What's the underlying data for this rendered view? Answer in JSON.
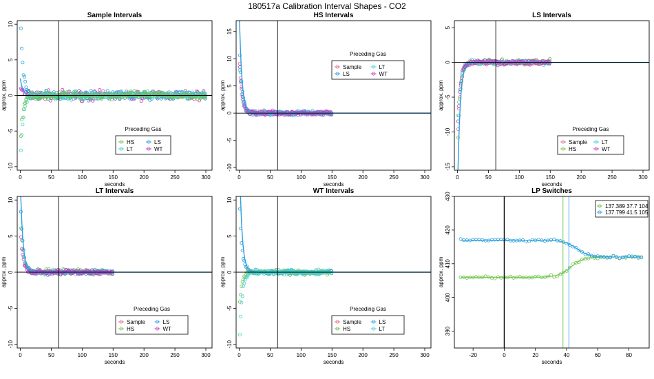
{
  "figure_title": "180517a   Calibration Interval Shapes - CO2",
  "colors": {
    "Sample": "#e16a86",
    "HS": "#6fc44c",
    "LS": "#2b9fe0",
    "LT": "#3fd1d4",
    "WT": "#c23ac4",
    "curve": "#2b9fe0",
    "early": "#e8c21f"
  },
  "chart_data": [
    {
      "id": "sample",
      "type": "scatter",
      "title": "Sample Intervals",
      "xlabel": "seconds",
      "ylabel": "approx. ppm",
      "xlim": [
        -5,
        310
      ],
      "ylim": [
        -10.5,
        10.5
      ],
      "xticks": [
        0,
        50,
        100,
        150,
        200,
        250,
        300
      ],
      "yticks": [
        -10,
        -5,
        0,
        5,
        10
      ],
      "vline": 62,
      "hline": 0,
      "legend": {
        "title": "Preceding Gas",
        "entries": [
          "HS",
          "LS",
          "LT",
          "WT"
        ]
      },
      "series": [
        {
          "name": "WT",
          "xmax": 300,
          "noise": 1.0,
          "start": 1.5
        },
        {
          "name": "LS",
          "xmax": 300,
          "noise": 0.9,
          "start": 12
        },
        {
          "name": "LT",
          "xmax": 300,
          "noise": 0.8,
          "start": -10
        },
        {
          "name": "HS",
          "xmax": 300,
          "noise": 0.8,
          "start": -7
        }
      ]
    },
    {
      "id": "hs",
      "type": "scatter",
      "title": "HS Intervals",
      "xlabel": "seconds",
      "ylabel": "approx. ppm",
      "xlim": [
        -5,
        310
      ],
      "ylim": [
        -10.5,
        17
      ],
      "xticks": [
        0,
        50,
        100,
        150,
        200,
        250,
        300
      ],
      "yticks": [
        -10,
        -5,
        0,
        5,
        10,
        15
      ],
      "vline": 62,
      "hline": 0,
      "legend": {
        "title": "Preceding Gas",
        "entries": [
          "Sample",
          "LT",
          "LS",
          "WT"
        ]
      },
      "series": [
        {
          "name": "Sample",
          "xmax": 150,
          "noise": 0.6,
          "start": 12
        },
        {
          "name": "LS",
          "xmax": 150,
          "noise": 0.6,
          "start": 14
        },
        {
          "name": "LT",
          "xmax": 150,
          "noise": 0.6,
          "start": 10
        },
        {
          "name": "WT",
          "xmax": 150,
          "noise": 0.6,
          "start": 11
        }
      ]
    },
    {
      "id": "ls",
      "type": "scatter",
      "title": "LS Intervals",
      "xlabel": "seconds",
      "ylabel": "approx. ppm",
      "xlim": [
        -5,
        310
      ],
      "ylim": [
        -15.5,
        6
      ],
      "xticks": [
        0,
        50,
        100,
        150,
        200,
        250,
        300
      ],
      "yticks": [
        -15,
        -10,
        -5,
        0,
        5
      ],
      "vline": 62,
      "hline": 0,
      "legend": {
        "title": "Preceding Gas",
        "entries": [
          "Sample",
          "LT",
          "HS",
          "WT"
        ]
      },
      "series": [
        {
          "name": "Sample",
          "xmax": 150,
          "noise": 0.5,
          "start": -12
        },
        {
          "name": "HS",
          "xmax": 150,
          "noise": 0.6,
          "start": -14
        },
        {
          "name": "LT",
          "xmax": 150,
          "noise": 0.5,
          "start": -10
        },
        {
          "name": "WT",
          "xmax": 150,
          "noise": 0.5,
          "start": -11
        }
      ]
    },
    {
      "id": "lt",
      "type": "scatter",
      "title": "LT Intervals",
      "xlabel": "seconds",
      "ylabel": "approx. ppm",
      "xlim": [
        -5,
        310
      ],
      "ylim": [
        -10.5,
        10.5
      ],
      "xticks": [
        0,
        50,
        100,
        150,
        200,
        250,
        300
      ],
      "yticks": [
        -10,
        -5,
        0,
        5,
        10
      ],
      "vline": 62,
      "hline": 0,
      "legend": {
        "title": "Preceding Gas",
        "entries": [
          "Sample",
          "LS",
          "HS",
          "WT"
        ]
      },
      "series": [
        {
          "name": "HS",
          "xmax": 150,
          "noise": 0.6,
          "start": 8
        },
        {
          "name": "LS",
          "xmax": 150,
          "noise": 0.5,
          "start": 11
        },
        {
          "name": "WT",
          "xmax": 150,
          "noise": 0.5,
          "start": 6
        }
      ]
    },
    {
      "id": "wt",
      "type": "scatter",
      "title": "WT Intervals",
      "xlabel": "seconds",
      "ylabel": "approx. ppm",
      "xlim": [
        -5,
        310
      ],
      "ylim": [
        -10.5,
        10.5
      ],
      "xticks": [
        0,
        50,
        100,
        150,
        200,
        250,
        300
      ],
      "yticks": [
        -10,
        -5,
        0,
        5,
        10
      ],
      "vline": 62,
      "hline": 0,
      "legend": {
        "title": "Preceding Gas",
        "entries": [
          "Sample",
          "LS",
          "HS",
          "LT"
        ]
      },
      "series": [
        {
          "name": "LS",
          "xmax": 150,
          "noise": 0.5,
          "start": 11
        },
        {
          "name": "HS",
          "xmax": 150,
          "noise": 0.5,
          "start": -5
        },
        {
          "name": "LT",
          "xmax": 150,
          "noise": 0.5,
          "start": -11
        }
      ]
    },
    {
      "id": "lp",
      "type": "scatter",
      "title": "LP Switches",
      "xlabel": "seconds",
      "ylabel": "approx. ppm",
      "xlim": [
        -32,
        93
      ],
      "ylim": [
        385,
        430
      ],
      "xticks": [
        -20,
        0,
        20,
        40,
        60,
        80
      ],
      "yticks": [
        390,
        400,
        410,
        420,
        430
      ],
      "vlines": [
        {
          "x": 0,
          "color": "#000000"
        },
        {
          "x": 37.7,
          "color": "#6fc44c"
        },
        {
          "x": 41.5,
          "color": "#2b9fe0"
        }
      ],
      "legend": {
        "entries": [
          {
            "label": "137.389 37.7 104",
            "color": "#6fc44c"
          },
          {
            "label": "137.799 41.5 105",
            "color": "#2b9fe0"
          }
        ]
      },
      "series": [
        {
          "name": "HS",
          "color": "#6fc44c",
          "level_before": 406,
          "level_after": 412,
          "switch_x": 37.7
        },
        {
          "name": "LS",
          "color": "#2b9fe0",
          "level_before": 417,
          "level_after": 412,
          "switch_x": 41.5
        }
      ]
    }
  ]
}
